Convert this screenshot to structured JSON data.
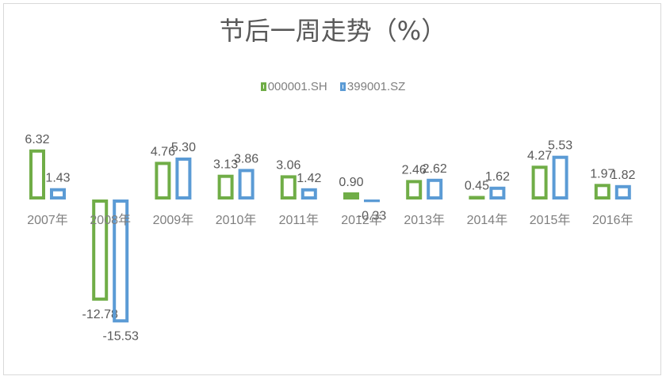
{
  "chart_data": {
    "type": "bar",
    "title": "节后一周走势（%）",
    "categories": [
      "2007年",
      "2008年",
      "2009年",
      "2010年",
      "2011年",
      "2012年",
      "2013年",
      "2014年",
      "2015年",
      "2016年"
    ],
    "series": [
      {
        "name": "000001.SH",
        "color": "#70ad47",
        "values": [
          6.32,
          -12.78,
          4.76,
          3.13,
          3.06,
          0.9,
          2.46,
          0.45,
          4.27,
          1.97
        ],
        "labels": [
          "6.32",
          "-12.78",
          "4.76",
          "3.13",
          "3.06",
          "0.90",
          "2.46",
          "0.45",
          "4.27",
          "1.97"
        ]
      },
      {
        "name": "399001.SZ",
        "color": "#5b9bd5",
        "values": [
          1.43,
          -15.53,
          5.3,
          3.86,
          1.42,
          -0.33,
          2.62,
          1.62,
          5.53,
          1.82
        ],
        "labels": [
          "1.43",
          "-15.53",
          "5.30",
          "3.86",
          "1.42",
          "-0.33",
          "2.62",
          "1.62",
          "5.53",
          "1.82"
        ]
      }
    ],
    "xlabel": "",
    "ylabel": "",
    "legend_position": "top",
    "grid": false,
    "data_labels": true
  }
}
